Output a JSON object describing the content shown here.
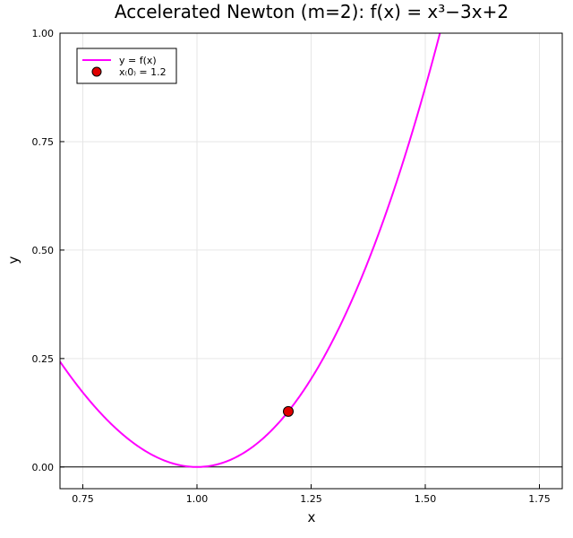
{
  "chart_data": {
    "type": "line",
    "title": "Accelerated Newton (m=2): f(x) = x³−3x+2",
    "xlabel": "x",
    "ylabel": "y",
    "xlim": [
      0.7,
      1.8
    ],
    "ylim": [
      -0.05,
      1.0
    ],
    "xticks": [
      0.75,
      1.0,
      1.25,
      1.5,
      1.75
    ],
    "xtick_labels": [
      "0.75",
      "1.00",
      "1.25",
      "1.50",
      "1.75"
    ],
    "yticks": [
      0.0,
      0.25,
      0.5,
      0.75,
      1.0
    ],
    "ytick_labels": [
      "0.00",
      "0.25",
      "0.50",
      "0.75",
      "1.00"
    ],
    "grid": true,
    "legend_position": "top-left",
    "series": [
      {
        "name": "y = f(x)",
        "kind": "line",
        "color": "#ff00ff",
        "function": "x^3 - 3x + 2",
        "x_range": [
          0.7,
          1.8
        ]
      },
      {
        "name": "x₍0₎ = 1.2",
        "kind": "scatter",
        "color": "#e00000",
        "points": [
          {
            "x": 1.2,
            "y": 0.128
          }
        ]
      }
    ],
    "hlines": [
      0
    ]
  }
}
